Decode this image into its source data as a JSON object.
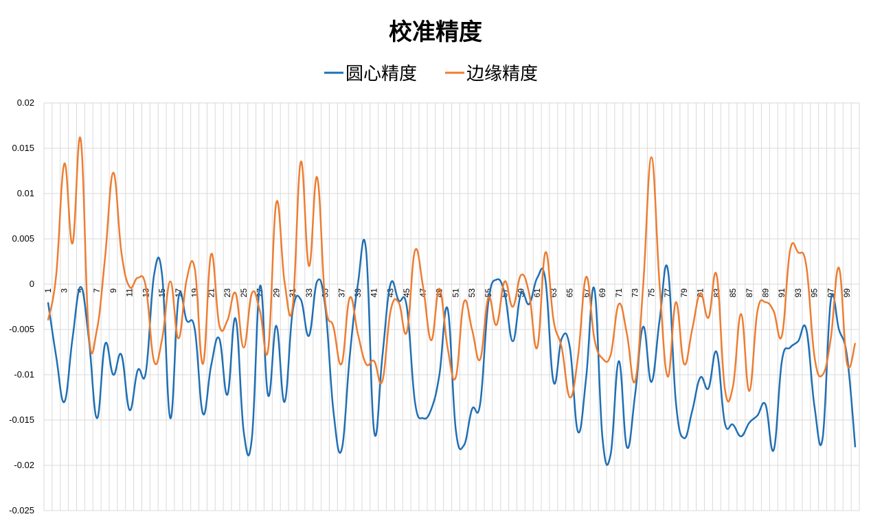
{
  "chart_data": {
    "type": "line",
    "title": "校准精度",
    "xlabel": "",
    "ylabel": "",
    "ylim": [
      -0.025,
      0.02
    ],
    "yticks": [
      "0.02",
      "0.015",
      "0.01",
      "0.005",
      "0",
      "-0.005",
      "-0.01",
      "-0.015",
      "-0.02",
      "-0.025"
    ],
    "ytick_values": [
      0.02,
      0.015,
      0.01,
      0.005,
      0,
      -0.005,
      -0.01,
      -0.015,
      -0.02,
      -0.025
    ],
    "x": [
      1,
      2,
      3,
      4,
      5,
      6,
      7,
      8,
      9,
      10,
      11,
      12,
      13,
      14,
      15,
      16,
      17,
      18,
      19,
      20,
      21,
      22,
      23,
      24,
      25,
      26,
      27,
      28,
      29,
      30,
      31,
      32,
      33,
      34,
      35,
      36,
      37,
      38,
      39,
      40,
      41,
      42,
      43,
      44,
      45,
      46,
      47,
      48,
      49,
      50,
      51,
      52,
      53,
      54,
      55,
      56,
      57,
      58,
      59,
      60,
      61,
      62,
      63,
      64,
      65,
      66,
      67,
      68,
      69,
      70,
      71,
      72,
      73,
      74,
      75,
      76,
      77,
      78,
      79,
      80,
      81,
      82,
      83,
      84,
      85,
      86,
      87,
      88,
      89,
      90,
      91,
      92,
      93,
      94,
      95,
      96,
      97,
      98,
      99,
      100
    ],
    "xtick_labels": [
      "1",
      "3",
      "5",
      "7",
      "9",
      "11",
      "13",
      "15",
      "17",
      "19",
      "21",
      "23",
      "25",
      "27",
      "29",
      "31",
      "33",
      "35",
      "37",
      "39",
      "41",
      "43",
      "45",
      "47",
      "49",
      "51",
      "53",
      "55",
      "57",
      "59",
      "61",
      "63",
      "65",
      "67",
      "69",
      "71",
      "73",
      "75",
      "77",
      "79",
      "81",
      "83",
      "85",
      "87",
      "89",
      "91",
      "93",
      "95",
      "97",
      "99"
    ],
    "legend_position": "top",
    "grid": true,
    "series": [
      {
        "name": "圆心精度",
        "color": "#1F6FB4",
        "values": [
          -0.002,
          -0.008,
          -0.013,
          -0.006,
          -0.0003,
          -0.006,
          -0.0148,
          -0.0066,
          -0.01,
          -0.0078,
          -0.0139,
          -0.0095,
          -0.0097,
          0.001,
          0.0009,
          -0.0148,
          -0.0015,
          -0.004,
          -0.005,
          -0.0143,
          -0.009,
          -0.006,
          -0.0122,
          -0.0038,
          -0.0163,
          -0.017,
          -0.0002,
          -0.0123,
          -0.0046,
          -0.013,
          -0.003,
          -0.0017,
          -0.0057,
          0.0003,
          -0.0025,
          -0.014,
          -0.0183,
          -0.008,
          0.0,
          0.0038,
          -0.0163,
          -0.008,
          0.0,
          -0.0018,
          -0.0025,
          -0.013,
          -0.0148,
          -0.0138,
          -0.01,
          -0.0027,
          -0.016,
          -0.0178,
          -0.0138,
          -0.0132,
          -0.002,
          0.0005,
          -0.001,
          -0.0063,
          -0.001,
          -0.0022,
          0.0007,
          0.0005,
          -0.0108,
          -0.006,
          -0.007,
          -0.0163,
          -0.0103,
          -0.0005,
          -0.017,
          -0.0188,
          -0.0085,
          -0.018,
          -0.0122,
          -0.0047,
          -0.0108,
          -0.004,
          0.0017,
          -0.013,
          -0.017,
          -0.014,
          -0.0103,
          -0.0115,
          -0.0075,
          -0.0153,
          -0.0155,
          -0.0168,
          -0.0153,
          -0.0145,
          -0.0133,
          -0.0183,
          -0.0085,
          -0.007,
          -0.0063,
          -0.005,
          -0.0135,
          -0.017,
          -0.0018,
          -0.005,
          -0.008,
          -0.018
        ]
      },
      {
        "name": "边缘精度",
        "color": "#ED7D31",
        "values": [
          -0.004,
          0.001,
          0.0133,
          0.0045,
          0.016,
          -0.0055,
          -0.005,
          0.003,
          0.0123,
          0.0035,
          -0.0003,
          0.0007,
          -0.0003,
          -0.0085,
          -0.006,
          0.0003,
          -0.006,
          0.0005,
          0.0017,
          -0.0088,
          0.0033,
          -0.0045,
          -0.004,
          -0.001,
          -0.007,
          -0.001,
          -0.003,
          -0.0072,
          0.009,
          0.0003,
          -0.0025,
          0.0135,
          0.002,
          0.0118,
          -0.002,
          -0.0047,
          -0.0088,
          -0.0015,
          -0.0055,
          -0.0088,
          -0.0085,
          -0.0107,
          -0.003,
          -0.002,
          -0.0053,
          0.0037,
          -0.0003,
          -0.0062,
          -0.0005,
          -0.007,
          -0.0103,
          -0.002,
          -0.005,
          -0.0083,
          -0.0015,
          -0.0045,
          0.0003,
          -0.0025,
          0.001,
          -0.001,
          -0.007,
          0.0035,
          -0.004,
          -0.007,
          -0.0125,
          -0.008,
          0.0008,
          -0.006,
          -0.0082,
          -0.0078,
          -0.0022,
          -0.0055,
          -0.0107,
          0.0,
          0.014,
          0.0,
          -0.0102,
          -0.002,
          -0.0088,
          -0.005,
          -0.001,
          -0.0037,
          0.001,
          -0.0115,
          -0.0113,
          -0.0033,
          -0.0118,
          -0.003,
          -0.002,
          -0.003,
          -0.0057,
          0.0037,
          0.0035,
          0.002,
          -0.008,
          -0.01,
          -0.006,
          0.0018,
          -0.0088,
          -0.0065
        ]
      }
    ]
  }
}
